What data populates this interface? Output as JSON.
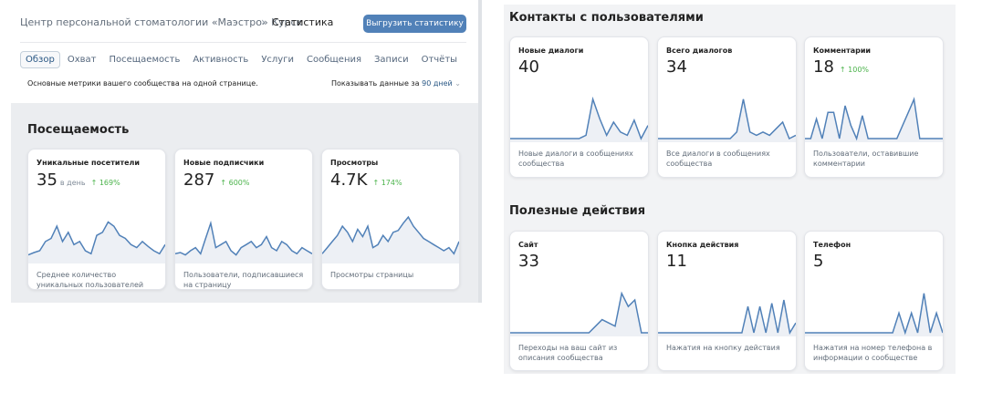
{
  "header": {
    "breadcrumb": "Центр персональной стоматологии «Маэстро» Курск",
    "current": "Статистика",
    "button": "Выгрузить статистику"
  },
  "tabs": [
    "Обзор",
    "Охват",
    "Посещаемость",
    "Активность",
    "Услуги",
    "Сообщения",
    "Записи",
    "Отчёты"
  ],
  "active_tab": 0,
  "description": "Основные метрики вашего сообщества на одной странице.",
  "period": {
    "label": "Показывать данные за",
    "value": "90 дней"
  },
  "sections": [
    {
      "title": "Посещаемость",
      "cards": [
        {
          "title": "Уникальные посетители",
          "value": "35",
          "unit": "в день",
          "change": "169%",
          "caption": "Среднее количество уникальных пользователей",
          "spark": [
            8,
            12,
            15,
            30,
            35,
            55,
            30,
            45,
            25,
            30,
            15,
            10,
            40,
            45,
            62,
            55,
            40,
            35,
            25,
            20,
            30,
            22,
            15,
            10,
            25
          ]
        },
        {
          "title": "Новые подписчики",
          "value": "287",
          "change": "600%",
          "caption": "Пользователи, подписавшиеся на страницу",
          "spark": [
            10,
            12,
            8,
            15,
            20,
            10,
            35,
            60,
            20,
            25,
            30,
            15,
            8,
            20,
            25,
            30,
            20,
            25,
            38,
            20,
            15,
            30,
            25,
            15,
            10,
            20,
            15,
            10
          ]
        },
        {
          "title": "Просмотры",
          "value": "4.7K",
          "change": "174%",
          "caption": "Просмотры страницы",
          "spark": [
            10,
            20,
            30,
            40,
            55,
            45,
            30,
            50,
            38,
            55,
            20,
            25,
            40,
            30,
            45,
            48,
            60,
            70,
            55,
            45,
            35,
            30,
            25,
            20,
            15,
            20,
            10,
            30
          ]
        }
      ]
    },
    {
      "title": "Контакты с пользователями",
      "cards": [
        {
          "title": "Новые диалоги",
          "value": "40",
          "caption": "Новые диалоги в сообщениях сообщества",
          "spark": [
            0,
            0,
            0,
            0,
            0,
            0,
            0,
            0,
            0,
            0,
            0,
            5,
            60,
            30,
            5,
            25,
            10,
            5,
            28,
            0,
            20
          ]
        },
        {
          "title": "Всего диалогов",
          "value": "34",
          "caption": "Все диалоги в сообщениях сообщества",
          "spark": [
            0,
            0,
            0,
            0,
            0,
            0,
            0,
            0,
            0,
            0,
            0,
            0,
            10,
            60,
            10,
            5,
            10,
            5,
            15,
            25,
            0,
            5
          ]
        },
        {
          "title": "Комментарии",
          "value": "18",
          "change": "100%",
          "caption": "Пользователи, оставившие комментарии",
          "spark": [
            0,
            0,
            30,
            0,
            40,
            40,
            0,
            50,
            20,
            0,
            35,
            0,
            0,
            0,
            0,
            0,
            0,
            20,
            40,
            60,
            0,
            0,
            0,
            0,
            0
          ]
        }
      ]
    },
    {
      "title": "Полезные действия",
      "cards": [
        {
          "title": "Сайт",
          "value": "33",
          "caption": "Переходы на ваш сайт из описания сообщества",
          "spark": [
            0,
            0,
            0,
            0,
            0,
            0,
            0,
            0,
            0,
            0,
            0,
            0,
            0,
            10,
            20,
            15,
            10,
            60,
            40,
            50,
            0,
            0
          ]
        },
        {
          "title": "Кнопка действия",
          "value": "11",
          "caption": "Нажатия на кнопку действия",
          "spark": [
            0,
            0,
            0,
            0,
            0,
            0,
            0,
            0,
            0,
            0,
            0,
            0,
            0,
            0,
            0,
            40,
            0,
            40,
            0,
            45,
            0,
            50,
            0,
            15
          ]
        },
        {
          "title": "Телефон",
          "value": "5",
          "caption": "Нажатия на номер телефона в информации о сообществе",
          "spark": [
            0,
            0,
            0,
            0,
            0,
            0,
            0,
            0,
            0,
            0,
            0,
            0,
            0,
            0,
            0,
            30,
            0,
            30,
            0,
            60,
            0,
            30,
            0
          ]
        }
      ]
    }
  ]
}
